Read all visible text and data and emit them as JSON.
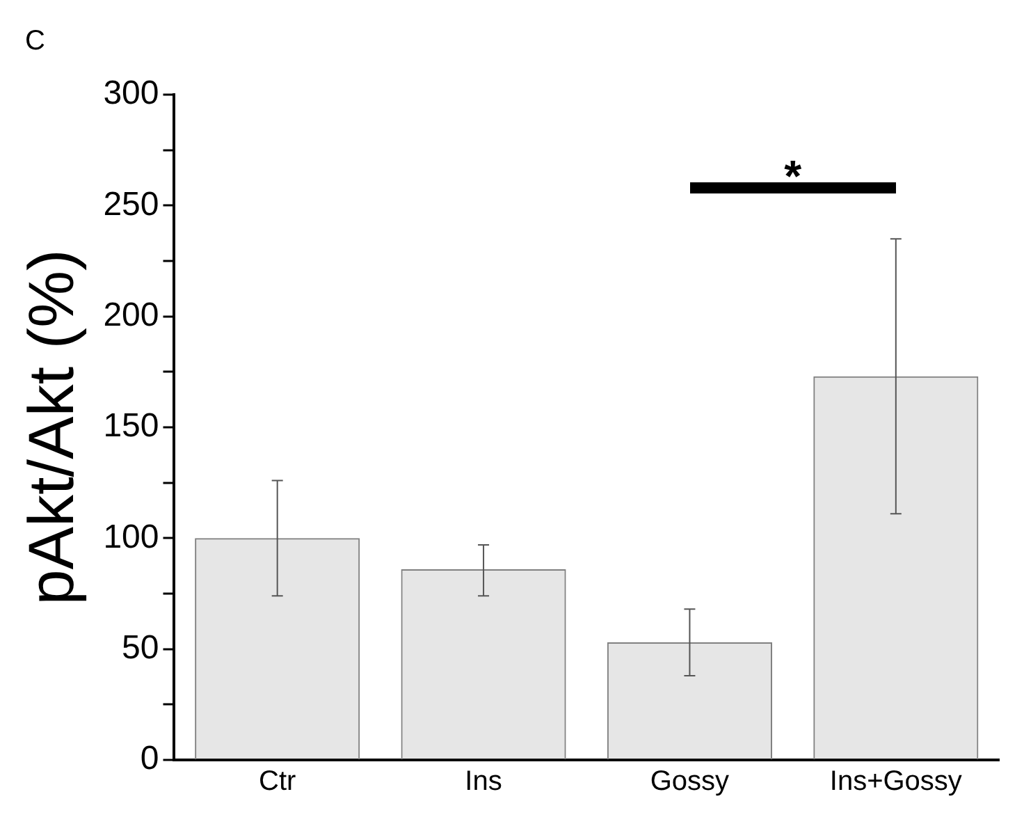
{
  "chart_data": {
    "type": "bar",
    "ylabel": "pAkt/Akt (%)",
    "categories": [
      "Ctr",
      "Ins",
      "Gossy",
      "Ins+Gossy"
    ],
    "values": [
      100,
      86,
      53,
      173
    ],
    "errors": [
      [
        74,
        126
      ],
      [
        74,
        97
      ],
      [
        38,
        68
      ],
      [
        111,
        235
      ]
    ],
    "color": "#808080",
    "ylim": [
      0,
      300
    ],
    "yticks": [
      0,
      {
        "value": 25,
        "label": null
      },
      50,
      {
        "value": 75,
        "label": null
      },
      100,
      {
        "value": 125,
        "label": null
      },
      150,
      {
        "value": 175,
        "label": null
      },
      200,
      {
        "value": 225,
        "label": null
      },
      250,
      {
        "value": 275,
        "label": null
      },
      300
    ],
    "grid": false,
    "annotations": [
      "C",
      "*"
    ]
  }
}
